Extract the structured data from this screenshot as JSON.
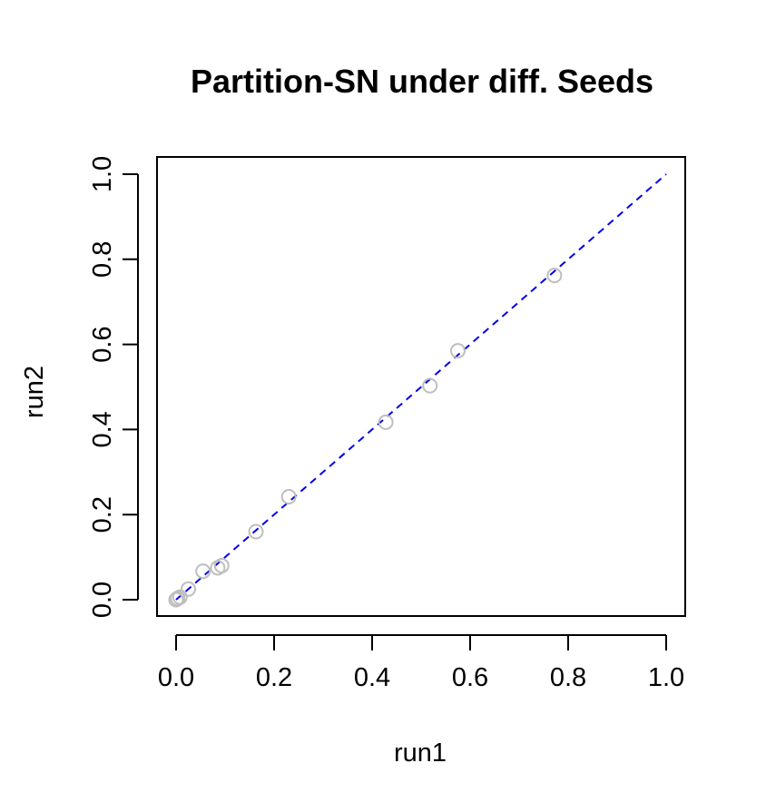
{
  "chart_data": {
    "type": "scatter",
    "title": "Partition-SN under diff. Seeds",
    "xlabel": "run1",
    "ylabel": "run2",
    "xlim": [
      0.0,
      1.0
    ],
    "ylim": [
      0.0,
      1.0
    ],
    "x_ticks": [
      "0.0",
      "0.2",
      "0.4",
      "0.6",
      "0.8",
      "1.0"
    ],
    "y_ticks": [
      "0.0",
      "0.2",
      "0.4",
      "0.6",
      "0.8",
      "1.0"
    ],
    "grid": false,
    "legend": "none",
    "series": [
      {
        "marker": "open-circle",
        "color": "#bebebe",
        "points": [
          {
            "x": 0.0,
            "y": 0.0
          },
          {
            "x": 0.003,
            "y": 0.003
          },
          {
            "x": 0.008,
            "y": 0.006
          },
          {
            "x": 0.025,
            "y": 0.025
          },
          {
            "x": 0.055,
            "y": 0.067
          },
          {
            "x": 0.085,
            "y": 0.075
          },
          {
            "x": 0.093,
            "y": 0.08
          },
          {
            "x": 0.163,
            "y": 0.16
          },
          {
            "x": 0.23,
            "y": 0.242
          },
          {
            "x": 0.428,
            "y": 0.417
          },
          {
            "x": 0.518,
            "y": 0.503
          },
          {
            "x": 0.575,
            "y": 0.585
          },
          {
            "x": 0.772,
            "y": 0.762
          }
        ]
      }
    ],
    "reference_line": {
      "style": "dashed",
      "color": "#0000ee",
      "from": {
        "x": 0.0,
        "y": 0.0
      },
      "to": {
        "x": 1.0,
        "y": 1.0
      }
    }
  }
}
